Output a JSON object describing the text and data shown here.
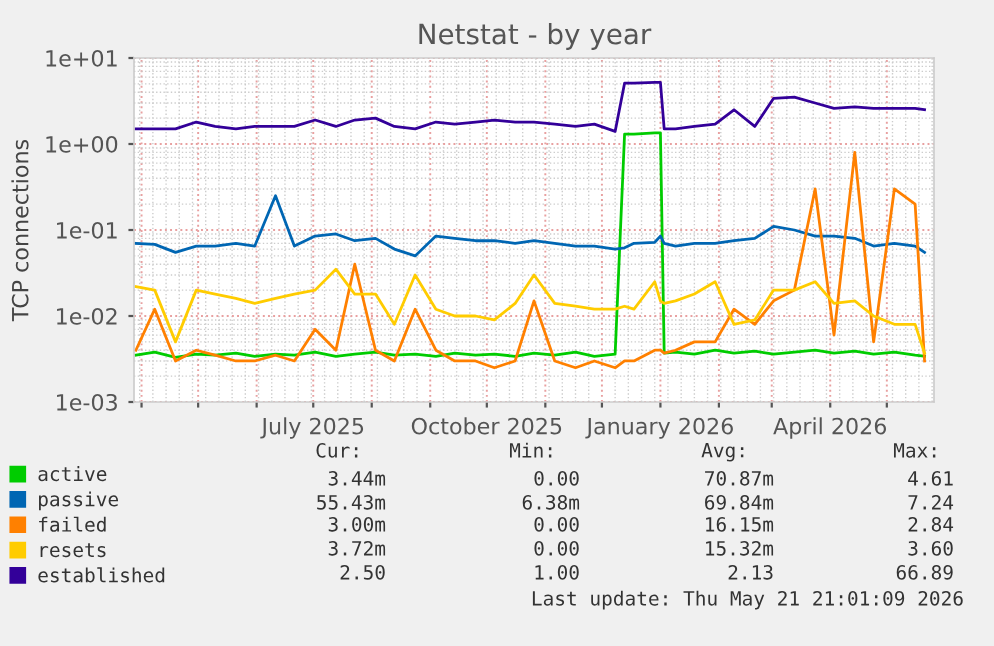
{
  "chart_data": {
    "type": "line",
    "title": "Netstat - by year",
    "ylabel": "TCP connections",
    "log": "y",
    "grid": true,
    "legend": "bottom",
    "marker": "none",
    "line_style": "solid",
    "x": [
      "2025-03-29",
      "2025-04-08",
      "2025-04-19",
      "2025-04-30",
      "2025-05-10",
      "2025-05-21",
      "2025-05-31",
      "2025-06-11",
      "2025-06-21",
      "2025-07-02",
      "2025-07-13",
      "2025-07-23",
      "2025-08-03",
      "2025-08-13",
      "2025-08-24",
      "2025-09-04",
      "2025-09-14",
      "2025-09-25",
      "2025-10-05",
      "2025-10-16",
      "2025-10-26",
      "2025-11-06",
      "2025-11-17",
      "2025-11-27",
      "2025-12-08",
      "2025-12-13",
      "2025-12-18",
      "2025-12-29",
      "2026-01-01",
      "2026-01-03",
      "2026-01-09",
      "2026-01-19",
      "2026-01-30",
      "2026-02-09",
      "2026-02-20",
      "2026-03-02",
      "2026-03-13",
      "2026-03-24",
      "2026-04-03",
      "2026-04-14",
      "2026-04-24",
      "2026-05-05",
      "2026-05-16",
      "2026-05-21"
    ],
    "series": [
      {
        "name": "active",
        "color": "#00cc00",
        "values": [
          0.0035,
          0.0038,
          0.0033,
          0.0036,
          0.0035,
          0.0037,
          0.0034,
          0.0036,
          0.0035,
          0.0038,
          0.0034,
          0.0036,
          0.0038,
          0.0035,
          0.0036,
          0.0034,
          0.0037,
          0.0035,
          0.0036,
          0.0034,
          0.0037,
          0.0035,
          0.0038,
          0.0034,
          0.0036,
          1.3,
          1.3,
          1.35,
          1.35,
          0.0037,
          0.0038,
          0.0036,
          0.004,
          0.0037,
          0.0039,
          0.0036,
          0.0038,
          0.004,
          0.0037,
          0.0039,
          0.0036,
          0.0038,
          0.0035,
          0.0034
        ]
      },
      {
        "name": "passive",
        "color": "#0066b3",
        "values": [
          0.07,
          0.068,
          0.055,
          0.065,
          0.065,
          0.07,
          0.065,
          0.25,
          0.065,
          0.085,
          0.09,
          0.075,
          0.08,
          0.06,
          0.05,
          0.085,
          0.08,
          0.075,
          0.075,
          0.07,
          0.075,
          0.07,
          0.065,
          0.065,
          0.06,
          0.062,
          0.07,
          0.072,
          0.085,
          0.07,
          0.065,
          0.07,
          0.07,
          0.075,
          0.08,
          0.11,
          0.1,
          0.085,
          0.085,
          0.08,
          0.065,
          0.07,
          0.065,
          0.055
        ]
      },
      {
        "name": "failed",
        "color": "#ff8000",
        "values": [
          0.004,
          0.012,
          0.003,
          0.004,
          0.0035,
          0.003,
          0.003,
          0.0035,
          0.003,
          0.007,
          0.004,
          0.04,
          0.004,
          0.003,
          0.012,
          0.004,
          0.003,
          0.003,
          0.0025,
          0.003,
          0.015,
          0.003,
          0.0025,
          0.003,
          0.0025,
          0.003,
          0.003,
          0.004,
          0.004,
          0.0037,
          0.004,
          0.005,
          0.005,
          0.012,
          0.008,
          0.015,
          0.02,
          0.3,
          0.006,
          0.8,
          0.005,
          0.3,
          0.2,
          0.003
        ]
      },
      {
        "name": "resets",
        "color": "#ffcc00",
        "values": [
          0.022,
          0.02,
          0.005,
          0.02,
          0.018,
          0.016,
          0.014,
          0.016,
          0.018,
          0.02,
          0.035,
          0.018,
          0.018,
          0.008,
          0.03,
          0.012,
          0.01,
          0.01,
          0.009,
          0.014,
          0.03,
          0.014,
          0.013,
          0.012,
          0.012,
          0.013,
          0.012,
          0.025,
          0.015,
          0.014,
          0.015,
          0.018,
          0.025,
          0.008,
          0.009,
          0.02,
          0.02,
          0.025,
          0.014,
          0.015,
          0.01,
          0.008,
          0.008,
          0.0037
        ]
      },
      {
        "name": "established",
        "color": "#330099",
        "values": [
          1.5,
          1.5,
          1.5,
          1.8,
          1.6,
          1.5,
          1.6,
          1.6,
          1.6,
          1.9,
          1.6,
          1.9,
          2.0,
          1.6,
          1.5,
          1.8,
          1.7,
          1.8,
          1.9,
          1.8,
          1.8,
          1.7,
          1.6,
          1.7,
          1.4,
          5.1,
          5.1,
          5.2,
          5.2,
          1.5,
          1.5,
          1.6,
          1.7,
          2.5,
          1.6,
          3.4,
          3.5,
          3.0,
          2.6,
          2.7,
          2.6,
          2.6,
          2.6,
          2.5
        ]
      }
    ],
    "xlim": [
      "2025-03-28",
      "2026-05-26"
    ],
    "xticks": [
      {
        "value": "2025-04-01",
        "label": null
      },
      {
        "value": "2025-05-01",
        "label": null
      },
      {
        "value": "2025-06-01",
        "label": null
      },
      {
        "value": "2025-07-01",
        "label": "July 2025"
      },
      {
        "value": "2025-08-01",
        "label": null
      },
      {
        "value": "2025-09-01",
        "label": null
      },
      {
        "value": "2025-10-01",
        "label": "October 2025"
      },
      {
        "value": "2025-11-01",
        "label": null
      },
      {
        "value": "2025-12-01",
        "label": null
      },
      {
        "value": "2026-01-01",
        "label": "January 2026"
      },
      {
        "value": "2026-02-01",
        "label": null
      },
      {
        "value": "2026-03-01",
        "label": null
      },
      {
        "value": "2026-04-01",
        "label": "April 2026"
      },
      {
        "value": "2026-05-01",
        "label": null
      }
    ],
    "ylim": [
      0.001,
      10
    ],
    "yticks": [
      {
        "value": 0.001,
        "label": "1e-03"
      },
      {
        "value": 0.01,
        "label": "1e-02"
      },
      {
        "value": 0.1,
        "label": "1e-01"
      },
      {
        "value": 1,
        "label": "1e+00"
      },
      {
        "value": 10,
        "label": "1e+01"
      }
    ],
    "annotations": [
      "Cur:",
      "Min:",
      "Avg:",
      "Max:",
      "3.44m",
      "0.00",
      "70.87m",
      "4.61",
      "55.43m",
      "6.38m",
      "69.84m",
      "7.24",
      "3.00m",
      "0.00",
      "16.15m",
      "2.84",
      "3.72m",
      "0.00",
      "15.32m",
      "3.60",
      "2.50",
      "1.00",
      "2.13",
      "66.89",
      "Last update: Thu May 21 21:01:09 2026"
    ]
  }
}
